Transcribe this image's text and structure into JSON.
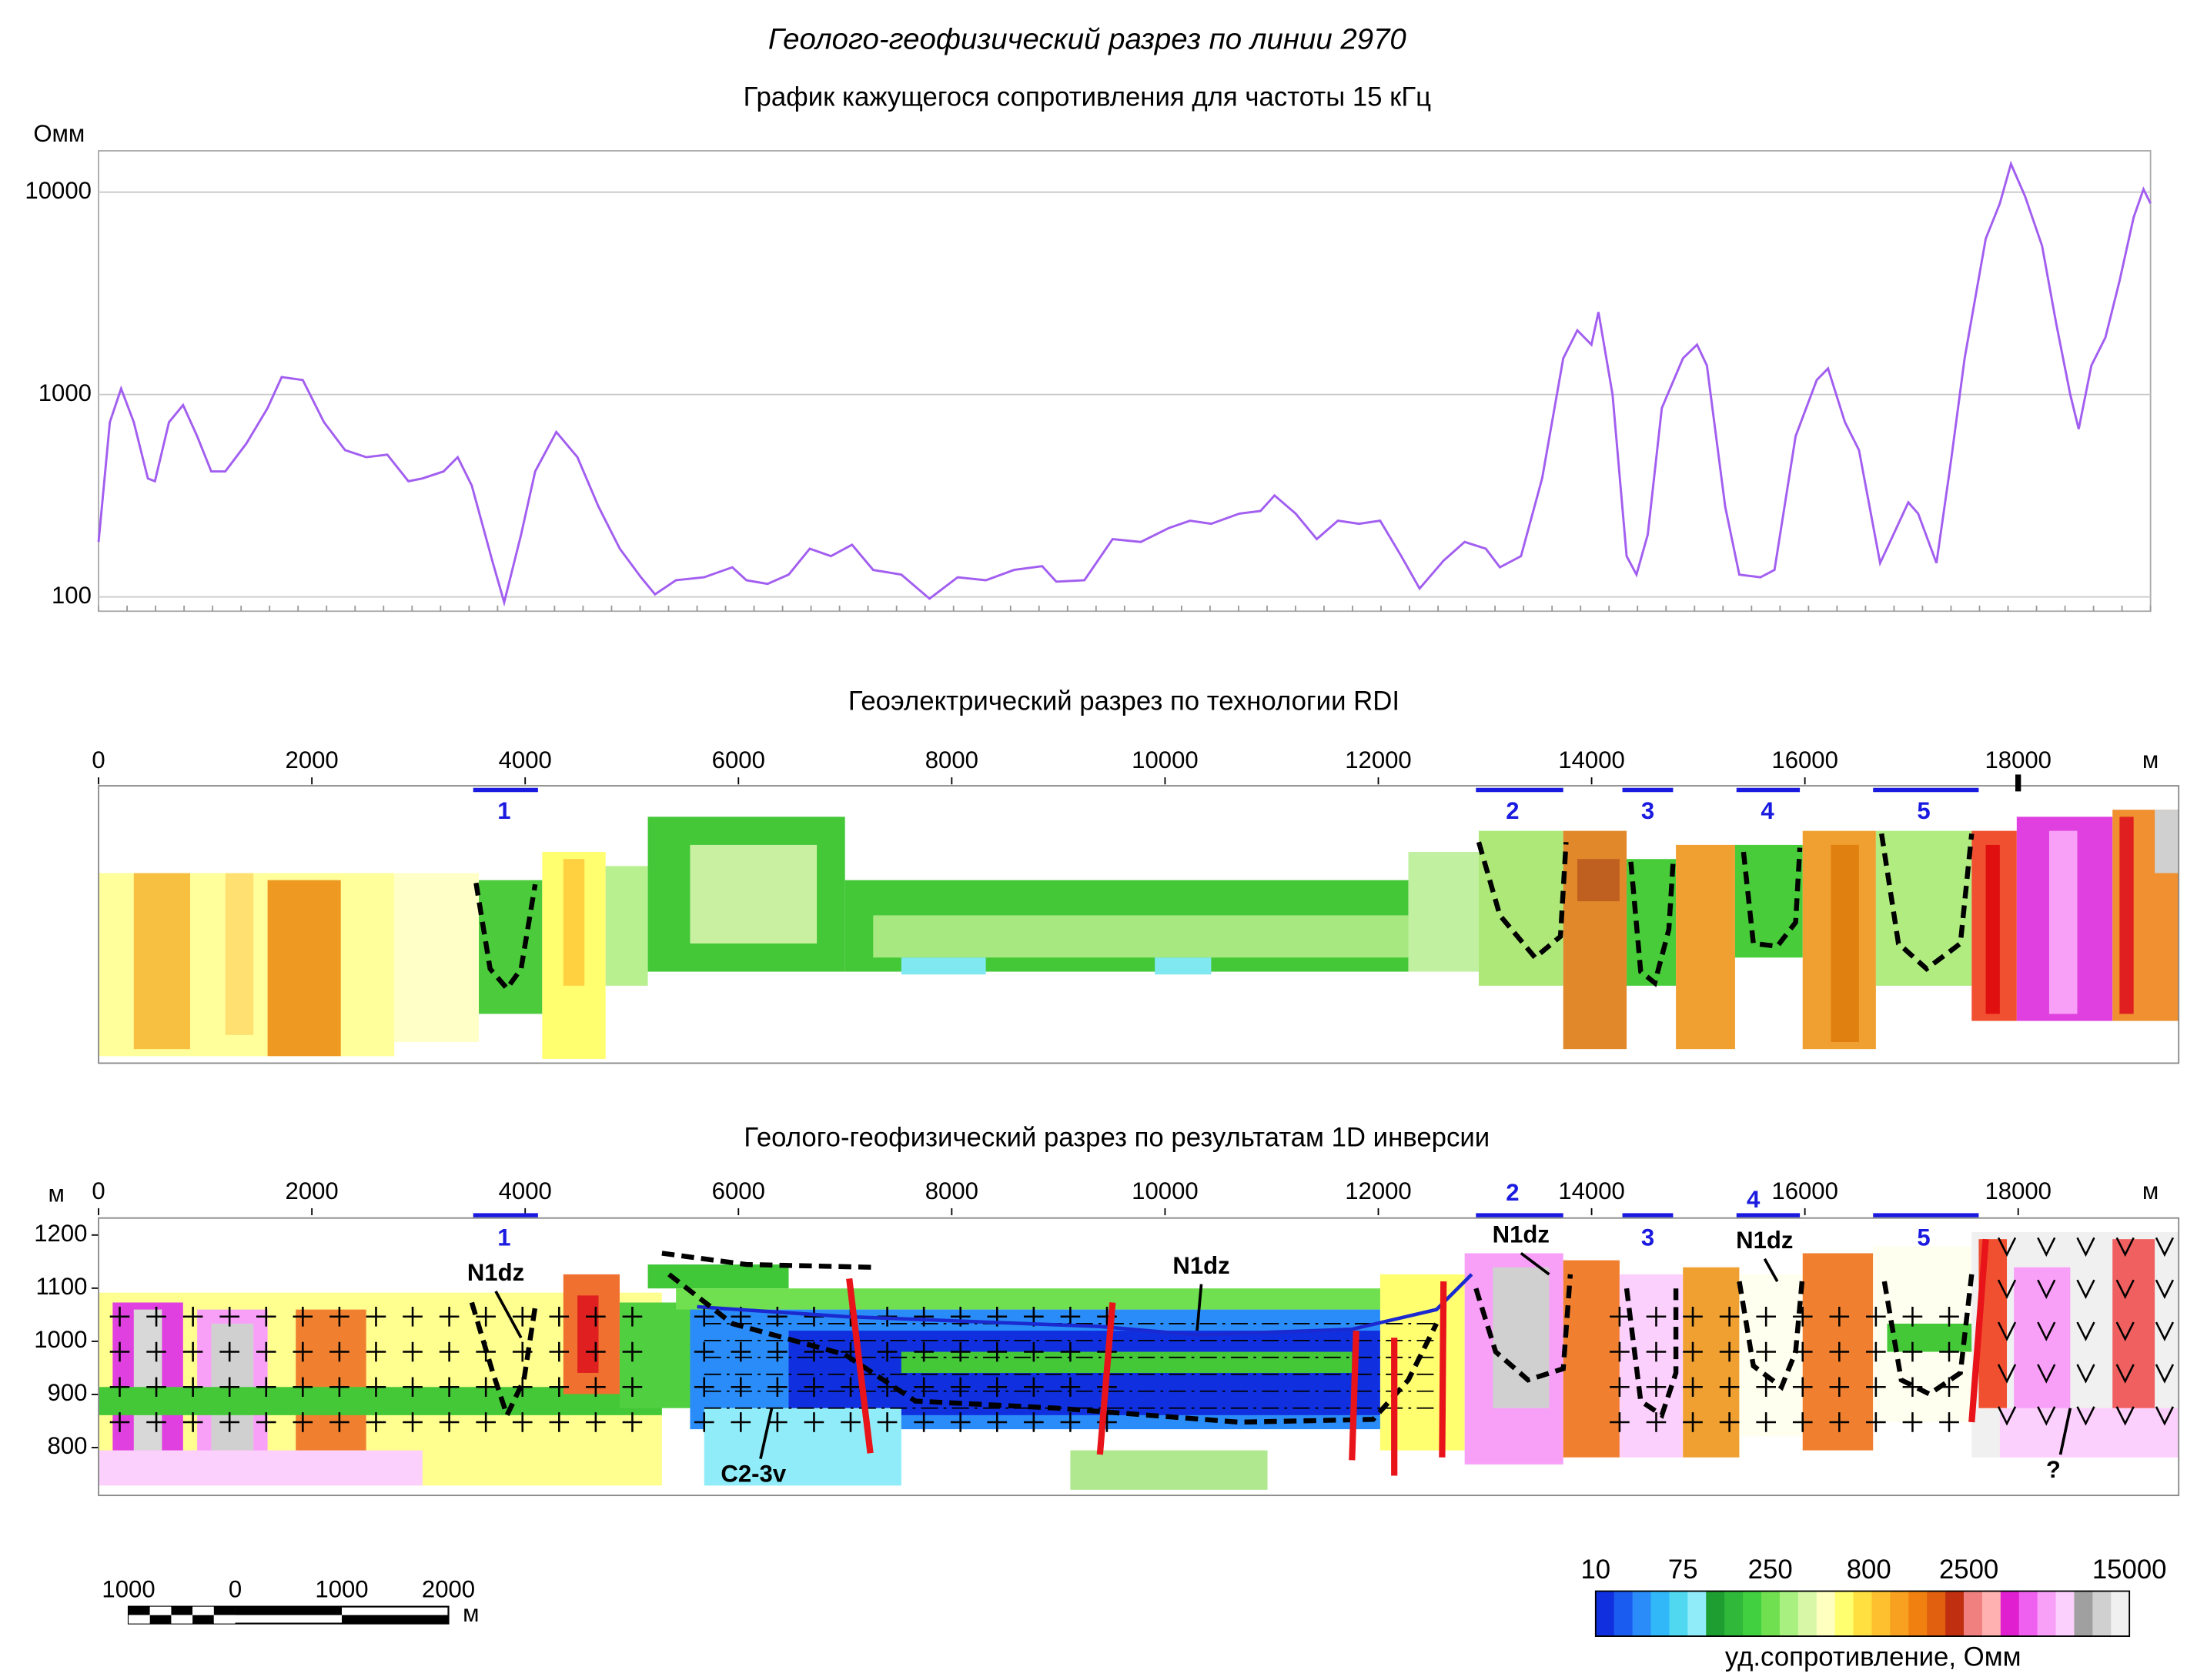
{
  "title": "Геолого-геофизический разрез по линии 2970",
  "chart_data": [
    {
      "type": "line",
      "title": "График кажущегося сопротивления для частоты 15 кГц",
      "ylabel": "Омм",
      "log_scale": true,
      "grid": true,
      "xlim": [
        0,
        19241
      ],
      "ylim": [
        85,
        16000
      ],
      "yticks": [
        100,
        1000,
        10000
      ],
      "x": [
        0,
        106,
        211,
        330,
        462,
        528,
        660,
        792,
        925,
        1057,
        1189,
        1387,
        1585,
        1717,
        1915,
        2113,
        2311,
        2509,
        2707,
        2905,
        3037,
        3235,
        3367,
        3499,
        3698,
        3803,
        3962,
        4094,
        4292,
        4490,
        4688,
        4887,
        5085,
        5217,
        5415,
        5679,
        5943,
        6075,
        6273,
        6471,
        6669,
        6867,
        7065,
        7263,
        7527,
        7792,
        8056,
        8320,
        8584,
        8848,
        8980,
        9244,
        9508,
        9772,
        10037,
        10235,
        10433,
        10697,
        10895,
        11027,
        11225,
        11423,
        11621,
        11819,
        12017,
        12216,
        12387,
        12612,
        12810,
        13008,
        13140,
        13338,
        13536,
        13734,
        13866,
        13998,
        14064,
        14196,
        14328,
        14421,
        14527,
        14659,
        14857,
        14989,
        15081,
        15253,
        15385,
        15583,
        15715,
        15913,
        16111,
        16217,
        16375,
        16507,
        16706,
        16798,
        16970,
        17062,
        17234,
        17366,
        17498,
        17696,
        17828,
        17932,
        18065,
        18224,
        18356,
        18488,
        18568,
        18686,
        18819,
        18951,
        19083,
        19175,
        19241
      ],
      "series": [
        {
          "color": "#a25ef0",
          "values": [
            187,
            731,
            1070,
            731,
            385,
            373,
            731,
            887,
            622,
            417,
            417,
            574,
            858,
            1220,
            1180,
            731,
            531,
            490,
            505,
            373,
            385,
            417,
            490,
            355,
            147,
            94,
            203,
            417,
            653,
            490,
            279,
            173,
            125,
            103,
            121,
            125,
            140,
            121,
            116,
            129,
            173,
            159,
            181,
            136,
            129,
            98,
            125,
            121,
            136,
            142,
            119,
            121,
            193,
            187,
            219,
            238,
            230,
            258,
            266,
            317,
            258,
            193,
            238,
            230,
            238,
            159,
            110,
            151,
            187,
            173,
            140,
            159,
            385,
            1510,
            2075,
            1764,
            2557,
            1000,
            159,
            129,
            203,
            858,
            1510,
            1764,
            1390,
            279,
            129,
            125,
            136,
            622,
            1180,
            1345,
            731,
            531,
            147,
            187,
            293,
            258,
            147,
            452,
            1510,
            5887,
            8790,
            13780,
            9530,
            5430,
            2250,
            1000,
            675,
            1390,
            1915,
            3640,
            7500,
            10330,
            8790
          ]
        }
      ]
    },
    {
      "type": "section",
      "title": "Геоэлектрический разрез по технологии RDI",
      "xlabel": "м",
      "xlim": [
        0,
        19505
      ],
      "xticks": [
        0,
        2000,
        4000,
        6000,
        8000,
        10000,
        12000,
        14000,
        16000,
        18000
      ],
      "zones": [
        "1",
        "2",
        "3",
        "4",
        "5"
      ]
    },
    {
      "type": "section",
      "title": "Геолого-геофизический разрез по результатам 1D инверсии",
      "xlabel": "м",
      "ylabel": "м",
      "xlim": [
        0,
        19505
      ],
      "xticks": [
        0,
        2000,
        4000,
        6000,
        8000,
        10000,
        12000,
        14000,
        16000,
        18000
      ],
      "ylim": [
        710,
        1232
      ],
      "yticks": [
        800,
        900,
        1000,
        1100,
        1200
      ],
      "zones": [
        "1",
        "2",
        "3",
        "4",
        "5"
      ],
      "annotations": [
        "N1dz",
        "N1dz",
        "N1dz",
        "N1dz",
        "C2-3v",
        "?"
      ]
    }
  ],
  "scale_bar": {
    "ticks": [
      {
        "value": -1000,
        "label": "1000"
      },
      0,
      1000,
      2000
    ],
    "unit": "м"
  },
  "colorbar": {
    "ticks": [
      10,
      75,
      250,
      800,
      2500,
      15000
    ],
    "label": "уд.сопротивление, Омм",
    "colors": [
      "#1030e0",
      "#1a5cf0",
      "#2a8cf8",
      "#30b8f8",
      "#50d8f0",
      "#90ecf8",
      "#1e9e30",
      "#30b83a",
      "#40d040",
      "#70e050",
      "#a8f080",
      "#d8f8a8",
      "#ffffc0",
      "#ffff70",
      "#ffe040",
      "#ffc030",
      "#f8a020",
      "#f08010",
      "#e06010",
      "#c03010",
      "#f08080",
      "#ffb0b0",
      "#e020d0",
      "#f060f0",
      "#f8a0f8",
      "#fcd0fc",
      "#a0a0a0",
      "#d0d0d0",
      "#f0f0f0"
    ]
  }
}
